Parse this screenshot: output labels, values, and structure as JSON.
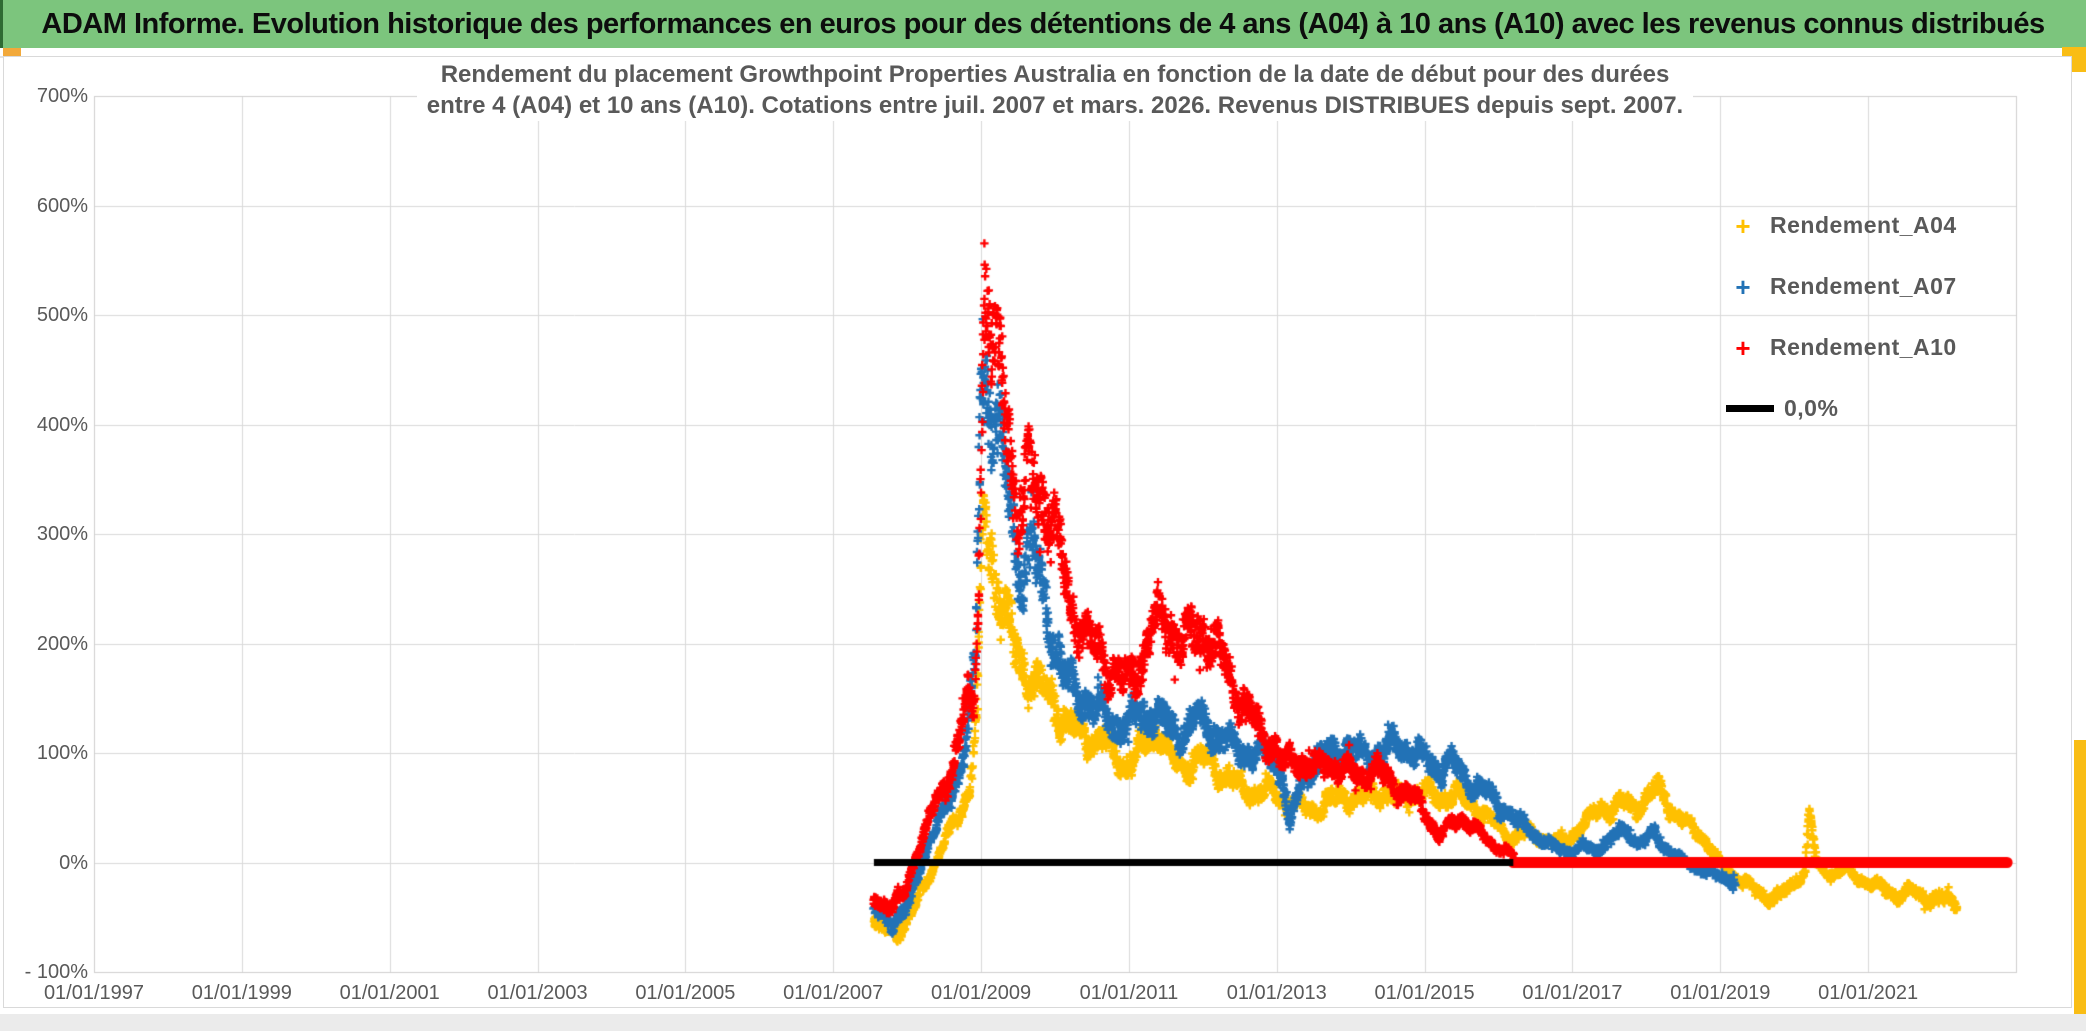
{
  "header": {
    "title": "ADAM Informe. Evolution historique des performances en euros pour des détentions de 4 ans (A04) à 10 ans (A10) avec les revenus connus distribués",
    "background_color": "#7CC57D",
    "accent_color": "#F9BD15"
  },
  "chart_data": {
    "type": "scatter",
    "title_lines": [
      "Rendement du placement Growthpoint Properties Australia en fonction de la date de début pour des durées",
      "entre 4 (A04) et 10 ans (A10). Cotations entre juil. 2007 et mars. 2026. Revenus DISTRIBUES depuis sept. 2007."
    ],
    "x_axis": {
      "start_year": 1997,
      "end_year": 2023,
      "tick_years": [
        1997,
        1999,
        2001,
        2003,
        2005,
        2007,
        2009,
        2011,
        2013,
        2015,
        2017,
        2019,
        2021
      ],
      "tick_labels": [
        "01/01/1997",
        "01/01/1999",
        "01/01/2001",
        "01/01/2003",
        "01/01/2005",
        "01/01/2007",
        "01/01/2009",
        "01/01/2011",
        "01/01/2013",
        "01/01/2015",
        "01/01/2017",
        "01/01/2019",
        "01/01/2021"
      ],
      "gridlines": true
    },
    "y_axis": {
      "min": -100,
      "max": 700,
      "step": 100,
      "tick_labels": [
        "700%",
        "600%",
        "500%",
        "400%",
        "300%",
        "200%",
        "100%",
        "0%",
        "- 100%"
      ],
      "unit": "%",
      "gridlines": true
    },
    "legend": [
      {
        "label": "Rendement_A04",
        "color": "#FFC000",
        "marker": "plus"
      },
      {
        "label": "Rendement_A07",
        "color": "#2272B6",
        "marker": "plus"
      },
      {
        "label": "Rendement_A10",
        "color": "#FF0000",
        "marker": "plus"
      },
      {
        "label": "0,0%",
        "color": "#000000",
        "marker": "line"
      }
    ],
    "grid_color": "#D9D9D9",
    "axis_text_color": "#595959",
    "noise": {
      "seed": 42,
      "base": 4,
      "scale": 0.13,
      "cap": 78,
      "outlier_prob": 0.025,
      "outlier_mult": 2.3
    },
    "series": [
      {
        "name": "Rendement_A04",
        "color": "#FFC000",
        "start_year": 2007.55,
        "end_year": 2022.2,
        "points": [
          [
            2007.55,
            -55
          ],
          [
            2007.8,
            -62
          ],
          [
            2008.0,
            -55
          ],
          [
            2008.2,
            -25
          ],
          [
            2008.4,
            2
          ],
          [
            2008.55,
            25
          ],
          [
            2008.7,
            45
          ],
          [
            2008.85,
            70
          ],
          [
            2008.95,
            140
          ],
          [
            2009.03,
            330
          ],
          [
            2009.1,
            300
          ],
          [
            2009.2,
            260
          ],
          [
            2009.3,
            230
          ],
          [
            2009.45,
            195
          ],
          [
            2009.6,
            175
          ],
          [
            2009.8,
            160
          ],
          [
            2010.0,
            145
          ],
          [
            2010.2,
            125
          ],
          [
            2010.4,
            115
          ],
          [
            2010.6,
            115
          ],
          [
            2010.8,
            100
          ],
          [
            2010.95,
            88
          ],
          [
            2011.1,
            95
          ],
          [
            2011.25,
            112
          ],
          [
            2011.4,
            122
          ],
          [
            2011.55,
            95
          ],
          [
            2011.7,
            85
          ],
          [
            2011.85,
            92
          ],
          [
            2012.0,
            95
          ],
          [
            2012.15,
            88
          ],
          [
            2012.3,
            78
          ],
          [
            2012.5,
            70
          ],
          [
            2012.7,
            63
          ],
          [
            2012.9,
            65
          ],
          [
            2013.1,
            58
          ],
          [
            2013.3,
            52
          ],
          [
            2013.5,
            48
          ],
          [
            2013.7,
            55
          ],
          [
            2013.9,
            62
          ],
          [
            2014.1,
            58
          ],
          [
            2014.35,
            65
          ],
          [
            2014.6,
            58
          ],
          [
            2014.8,
            63
          ],
          [
            2015.0,
            65
          ],
          [
            2015.2,
            58
          ],
          [
            2015.4,
            63
          ],
          [
            2015.6,
            55
          ],
          [
            2015.8,
            45
          ],
          [
            2016.0,
            33
          ],
          [
            2016.2,
            22
          ],
          [
            2016.4,
            28
          ],
          [
            2016.6,
            22
          ],
          [
            2016.8,
            18
          ],
          [
            2017.0,
            25
          ],
          [
            2017.2,
            38
          ],
          [
            2017.4,
            52
          ],
          [
            2017.55,
            48
          ],
          [
            2017.7,
            55
          ],
          [
            2017.85,
            50
          ],
          [
            2018.0,
            58
          ],
          [
            2018.15,
            68
          ],
          [
            2018.25,
            60
          ],
          [
            2018.4,
            42
          ],
          [
            2018.55,
            35
          ],
          [
            2018.7,
            28
          ],
          [
            2018.85,
            15
          ],
          [
            2019.0,
            -2
          ],
          [
            2019.2,
            -12
          ],
          [
            2019.4,
            -22
          ],
          [
            2019.6,
            -30
          ],
          [
            2019.75,
            -33
          ],
          [
            2019.9,
            -26
          ],
          [
            2020.05,
            -14
          ],
          [
            2020.15,
            -8
          ],
          [
            2020.2,
            50
          ],
          [
            2020.25,
            25
          ],
          [
            2020.3,
            -2
          ],
          [
            2020.4,
            -8
          ],
          [
            2020.55,
            -10
          ],
          [
            2020.7,
            -6
          ],
          [
            2020.85,
            -14
          ],
          [
            2021.0,
            -18
          ],
          [
            2021.2,
            -24
          ],
          [
            2021.4,
            -30
          ],
          [
            2021.6,
            -27
          ],
          [
            2021.8,
            -32
          ],
          [
            2022.0,
            -34
          ],
          [
            2022.2,
            -38
          ]
        ]
      },
      {
        "name": "Rendement_A07",
        "color": "#2272B6",
        "start_year": 2007.55,
        "end_year": 2019.2,
        "points": [
          [
            2007.55,
            -45
          ],
          [
            2007.8,
            -52
          ],
          [
            2008.0,
            -45
          ],
          [
            2008.15,
            -10
          ],
          [
            2008.3,
            20
          ],
          [
            2008.5,
            45
          ],
          [
            2008.65,
            75
          ],
          [
            2008.8,
            110
          ],
          [
            2008.92,
            180
          ],
          [
            2009.0,
            430
          ],
          [
            2009.08,
            445
          ],
          [
            2009.15,
            420
          ],
          [
            2009.25,
            390
          ],
          [
            2009.35,
            340
          ],
          [
            2009.5,
            270
          ],
          [
            2009.6,
            280
          ],
          [
            2009.7,
            285
          ],
          [
            2009.8,
            250
          ],
          [
            2009.9,
            225
          ],
          [
            2010.0,
            205
          ],
          [
            2010.1,
            175
          ],
          [
            2010.25,
            155
          ],
          [
            2010.4,
            150
          ],
          [
            2010.55,
            142
          ],
          [
            2010.7,
            132
          ],
          [
            2010.85,
            126
          ],
          [
            2011.0,
            126
          ],
          [
            2011.15,
            132
          ],
          [
            2011.3,
            140
          ],
          [
            2011.45,
            128
          ],
          [
            2011.6,
            120
          ],
          [
            2011.75,
            122
          ],
          [
            2011.9,
            130
          ],
          [
            2012.05,
            126
          ],
          [
            2012.2,
            115
          ],
          [
            2012.35,
            108
          ],
          [
            2012.5,
            104
          ],
          [
            2012.65,
            100
          ],
          [
            2012.8,
            100
          ],
          [
            2012.95,
            95
          ],
          [
            2013.08,
            82
          ],
          [
            2013.17,
            28
          ],
          [
            2013.28,
            62
          ],
          [
            2013.4,
            85
          ],
          [
            2013.55,
            92
          ],
          [
            2013.7,
            98
          ],
          [
            2013.85,
            102
          ],
          [
            2014.0,
            106
          ],
          [
            2014.15,
            95
          ],
          [
            2014.3,
            98
          ],
          [
            2014.45,
            102
          ],
          [
            2014.6,
            106
          ],
          [
            2014.75,
            104
          ],
          [
            2014.9,
            98
          ],
          [
            2015.05,
            92
          ],
          [
            2015.2,
            86
          ],
          [
            2015.35,
            92
          ],
          [
            2015.5,
            80
          ],
          [
            2015.65,
            72
          ],
          [
            2015.8,
            66
          ],
          [
            2015.95,
            58
          ],
          [
            2016.1,
            48
          ],
          [
            2016.25,
            38
          ],
          [
            2016.4,
            32
          ],
          [
            2016.55,
            22
          ],
          [
            2016.7,
            16
          ],
          [
            2016.85,
            12
          ],
          [
            2017.0,
            10
          ],
          [
            2017.15,
            14
          ],
          [
            2017.3,
            12
          ],
          [
            2017.45,
            18
          ],
          [
            2017.6,
            26
          ],
          [
            2017.75,
            30
          ],
          [
            2017.9,
            16
          ],
          [
            2018.0,
            20
          ],
          [
            2018.1,
            28
          ],
          [
            2018.2,
            18
          ],
          [
            2018.35,
            8
          ],
          [
            2018.5,
            2
          ],
          [
            2018.65,
            -4
          ],
          [
            2018.8,
            -8
          ],
          [
            2018.95,
            -12
          ],
          [
            2019.1,
            -14
          ],
          [
            2019.2,
            -17
          ]
        ]
      },
      {
        "name": "Rendement_A10",
        "color": "#FF0000",
        "start_year": 2007.55,
        "end_year": 2016.2,
        "points": [
          [
            2007.55,
            -33
          ],
          [
            2007.8,
            -40
          ],
          [
            2007.95,
            -32
          ],
          [
            2008.1,
            2
          ],
          [
            2008.25,
            30
          ],
          [
            2008.4,
            55
          ],
          [
            2008.55,
            75
          ],
          [
            2008.7,
            110
          ],
          [
            2008.82,
            150
          ],
          [
            2008.9,
            135
          ],
          [
            2008.97,
            280
          ],
          [
            2009.05,
            540
          ],
          [
            2009.12,
            480
          ],
          [
            2009.2,
            450
          ],
          [
            2009.3,
            430
          ],
          [
            2009.4,
            400
          ],
          [
            2009.5,
            315
          ],
          [
            2009.62,
            345
          ],
          [
            2009.75,
            350
          ],
          [
            2009.88,
            330
          ],
          [
            2010.0,
            300
          ],
          [
            2010.12,
            262
          ],
          [
            2010.25,
            232
          ],
          [
            2010.4,
            210
          ],
          [
            2010.55,
            195
          ],
          [
            2010.7,
            182
          ],
          [
            2010.85,
            168
          ],
          [
            2011.0,
            162
          ],
          [
            2011.15,
            185
          ],
          [
            2011.3,
            212
          ],
          [
            2011.45,
            222
          ],
          [
            2011.6,
            215
          ],
          [
            2011.75,
            200
          ],
          [
            2011.9,
            208
          ],
          [
            2012.05,
            215
          ],
          [
            2012.2,
            192
          ],
          [
            2012.35,
            172
          ],
          [
            2012.5,
            152
          ],
          [
            2012.65,
            132
          ],
          [
            2012.8,
            118
          ],
          [
            2012.95,
            108
          ],
          [
            2013.1,
            88
          ],
          [
            2013.25,
            95
          ],
          [
            2013.4,
            90
          ],
          [
            2013.55,
            85
          ],
          [
            2013.7,
            92
          ],
          [
            2013.85,
            88
          ],
          [
            2014.0,
            82
          ],
          [
            2014.15,
            80
          ],
          [
            2014.3,
            86
          ],
          [
            2014.45,
            78
          ],
          [
            2014.6,
            70
          ],
          [
            2014.75,
            64
          ],
          [
            2014.9,
            56
          ],
          [
            2015.05,
            42
          ],
          [
            2015.2,
            22
          ],
          [
            2015.35,
            35
          ],
          [
            2015.5,
            42
          ],
          [
            2015.65,
            32
          ],
          [
            2015.8,
            24
          ],
          [
            2015.95,
            16
          ],
          [
            2016.1,
            10
          ],
          [
            2016.2,
            5
          ]
        ]
      }
    ],
    "reference_lines": [
      {
        "name": "a10-zero-tail",
        "value": 0,
        "color": "#FF0000",
        "from_year": 2016.2,
        "to_year": 2022.88,
        "width": 11,
        "cap": "round"
      },
      {
        "name": "zero-line",
        "label": "0,0%",
        "value": 0,
        "color": "#000000",
        "from_year": 2007.55,
        "to_year": 2016.2,
        "width": 7,
        "cap": "butt"
      }
    ]
  }
}
